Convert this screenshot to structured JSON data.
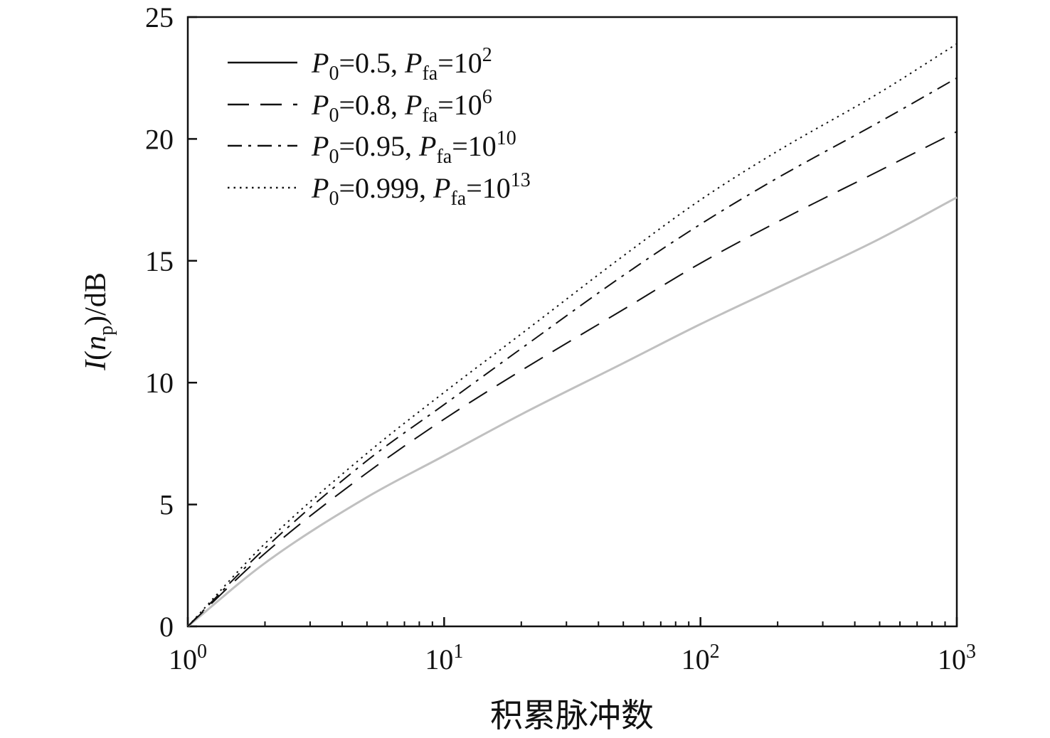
{
  "chart_data": {
    "type": "line",
    "title": "",
    "xlabel": "积累脉冲数",
    "ylabel": {
      "italic": "I",
      "open": "(",
      "var": "n",
      "sub": "p",
      "close": ")/dB"
    },
    "xscale": "log",
    "xlim": [
      1,
      1000
    ],
    "ylim": [
      0,
      25
    ],
    "xticks": [
      {
        "value": 1,
        "base": "10",
        "exp": "0"
      },
      {
        "value": 10,
        "base": "10",
        "exp": "1"
      },
      {
        "value": 100,
        "base": "10",
        "exp": "2"
      },
      {
        "value": 1000,
        "base": "10",
        "exp": "3"
      }
    ],
    "yticks": [
      {
        "value": 0,
        "label": "0"
      },
      {
        "value": 5,
        "label": "5"
      },
      {
        "value": 10,
        "label": "10"
      },
      {
        "value": 15,
        "label": "15"
      },
      {
        "value": 20,
        "label": "20"
      },
      {
        "value": 25,
        "label": "25"
      }
    ],
    "grid": false,
    "legend_position": "top-left",
    "x": [
      1,
      2,
      5,
      10,
      20,
      50,
      100,
      200,
      500,
      1000
    ],
    "series": [
      {
        "id": "s1",
        "style": "solid",
        "color": "#c0c0c0",
        "legend": {
          "P0": "0.5",
          "Pfa_base": "10",
          "Pfa_exp": "2"
        },
        "values": [
          0,
          2.6,
          5.3,
          7.0,
          8.7,
          10.8,
          12.4,
          13.9,
          15.9,
          17.6
        ]
      },
      {
        "id": "s2",
        "style": "dashed",
        "color": "#111111",
        "legend": {
          "P0": "0.8",
          "Pfa_base": "10",
          "Pfa_exp": "6"
        },
        "values": [
          0,
          3.0,
          6.3,
          8.5,
          10.5,
          13.0,
          14.9,
          16.6,
          18.7,
          20.3
        ]
      },
      {
        "id": "s3",
        "style": "dashdot",
        "color": "#111111",
        "legend": {
          "P0": "0.95",
          "Pfa_base": "10",
          "Pfa_exp": "10"
        },
        "values": [
          0,
          3.2,
          6.8,
          9.1,
          11.4,
          14.4,
          16.5,
          18.4,
          20.7,
          22.5
        ]
      },
      {
        "id": "s4",
        "style": "dotted",
        "color": "#111111",
        "legend": {
          "P0": "0.999",
          "Pfa_base": "10",
          "Pfa_exp": "13"
        },
        "values": [
          0,
          3.4,
          7.1,
          9.6,
          12.0,
          15.2,
          17.5,
          19.5,
          21.9,
          23.9
        ]
      }
    ]
  }
}
